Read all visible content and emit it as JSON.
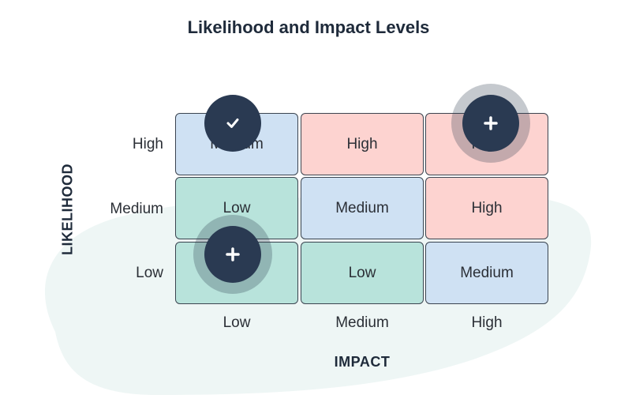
{
  "title": "Likelihood and Impact Levels",
  "y_axis_label": "LIKELIHOOD",
  "x_axis_label": "IMPACT",
  "row_labels": [
    "High",
    "Medium",
    "Low"
  ],
  "column_labels": [
    "Low",
    "Medium",
    "High"
  ],
  "matrix": [
    [
      "Medium",
      "High",
      "High"
    ],
    [
      "Low",
      "Medium",
      "High"
    ],
    [
      "Low",
      "Low",
      "Medium"
    ]
  ],
  "colors": {
    "low": "#b8e3db",
    "medium": "#cfe1f3",
    "high": "#fdd3d0",
    "marker": "#2a3a52",
    "blob": "#eef6f5"
  },
  "markers": [
    {
      "icon": "check-icon",
      "likelihood": "High",
      "impact": "Low"
    },
    {
      "icon": "plus-icon",
      "likelihood": "High",
      "impact": "High"
    },
    {
      "icon": "plus-icon",
      "likelihood": "Low",
      "impact": "Low"
    }
  ]
}
